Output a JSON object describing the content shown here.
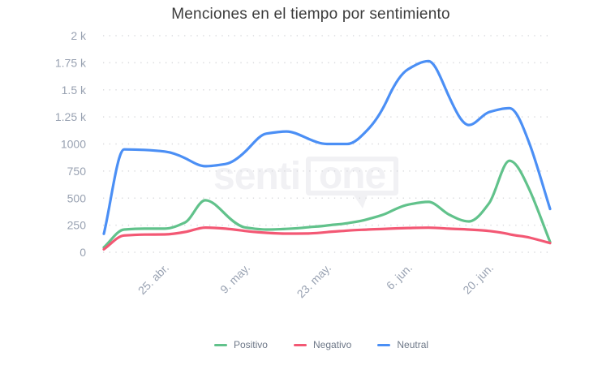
{
  "watermark": {
    "prefix": "senti",
    "suffix": "one"
  },
  "colors": {
    "background": "#ffffff",
    "title": "#3c3c3c",
    "grid": "#d9dadd",
    "axis_label": "#99a2b2",
    "legend_text": "#6e7888",
    "watermark": "#f1f1f4"
  },
  "chart_data": {
    "type": "line",
    "title": "Menciones en el tiempo por sentimiento",
    "xlabel": "",
    "ylabel": "",
    "ylim": [
      0,
      2000
    ],
    "grid": "horizontal-dotted",
    "legend_position": "bottom",
    "y_tick_labels": [
      "0",
      "250",
      "500",
      "750",
      "1000",
      "1.25 k",
      "1.5 k",
      "1.75 k",
      "2 k"
    ],
    "x_tick_labels": [
      "25. abr.",
      "9. may.",
      "23. may.",
      "6. jun.",
      "20. jun."
    ],
    "x_tick_sample_indices": [
      3,
      7,
      11,
      15,
      19
    ],
    "x": [
      "15. abr.",
      "18. abr.",
      "22. abr.",
      "25. abr.",
      "29. abr.",
      "2. may.",
      "6. may.",
      "9. may.",
      "13. may.",
      "16. may.",
      "20. may.",
      "23. may.",
      "27. may.",
      "30. may.",
      "3. jun.",
      "6. jun.",
      "10. jun.",
      "13. jun.",
      "17. jun.",
      "20. jun.",
      "24. jun.",
      "27. jun.",
      "1. jul."
    ],
    "series": [
      {
        "name": "Positivo",
        "color": "#61c28b",
        "values": [
          45,
          210,
          218,
          218,
          275,
          480,
          350,
          228,
          210,
          216,
          230,
          247,
          268,
          305,
          365,
          440,
          465,
          350,
          285,
          455,
          845,
          570,
          95
        ]
      },
      {
        "name": "Negativo",
        "color": "#f35874",
        "values": [
          28,
          155,
          163,
          165,
          187,
          228,
          218,
          196,
          180,
          172,
          173,
          186,
          200,
          210,
          217,
          224,
          227,
          218,
          210,
          196,
          166,
          135,
          85
        ]
      },
      {
        "name": "Neutral",
        "color": "#4b8ff5",
        "values": [
          170,
          950,
          945,
          930,
          870,
          795,
          815,
          935,
          1095,
          1115,
          1055,
          1000,
          1000,
          1130,
          1420,
          1690,
          1765,
          1445,
          1175,
          1295,
          1330,
          995,
          400
        ]
      }
    ]
  }
}
